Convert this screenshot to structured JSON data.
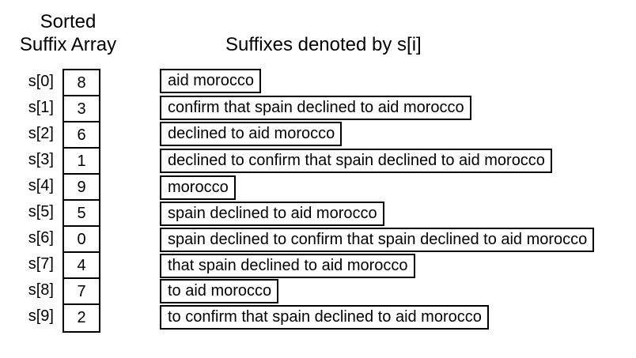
{
  "headings": {
    "array_line1": "Sorted",
    "array_line2": "Suffix Array",
    "suffixes": "Suffixes denoted by s[i]"
  },
  "rows": [
    {
      "label": "s[0]",
      "index": "8",
      "suffix": "aid morocco"
    },
    {
      "label": "s[1]",
      "index": "3",
      "suffix": "confirm that spain declined to aid morocco"
    },
    {
      "label": "s[2]",
      "index": "6",
      "suffix": "declined to aid morocco"
    },
    {
      "label": "s[3]",
      "index": "1",
      "suffix": "declined to confirm that spain declined to aid morocco"
    },
    {
      "label": "s[4]",
      "index": "9",
      "suffix": "morocco"
    },
    {
      "label": "s[5]",
      "index": "5",
      "suffix": "spain declined to aid morocco"
    },
    {
      "label": "s[6]",
      "index": "0",
      "suffix": "spain declined to confirm that spain declined to aid morocco"
    },
    {
      "label": "s[7]",
      "index": "4",
      "suffix": "that spain declined to aid morocco"
    },
    {
      "label": "s[8]",
      "index": "7",
      "suffix": "to aid morocco"
    },
    {
      "label": "s[9]",
      "index": "2",
      "suffix": "to confirm that spain declined to aid morocco"
    }
  ]
}
